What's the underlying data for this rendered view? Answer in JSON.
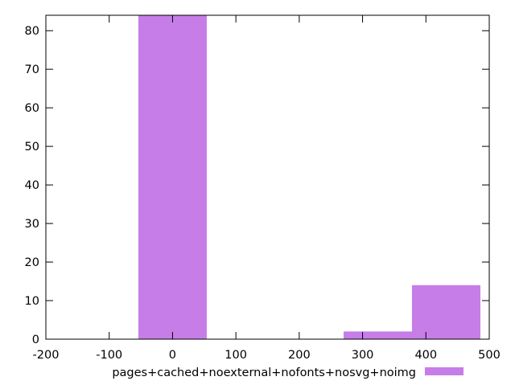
{
  "chart_data": {
    "type": "bar",
    "title": "",
    "xlabel": "",
    "ylabel": "",
    "xlim": [
      -200,
      500
    ],
    "ylim": [
      0,
      84
    ],
    "x_ticks": [
      -200,
      -100,
      0,
      100,
      200,
      300,
      400,
      500
    ],
    "x_tick_labels": [
      "-200",
      "-100",
      "0",
      "100",
      "200",
      "300",
      "400",
      "500"
    ],
    "y_ticks": [
      0,
      10,
      20,
      30,
      40,
      50,
      60,
      70,
      80
    ],
    "y_tick_labels": [
      "0",
      "10",
      "20",
      "30",
      "40",
      "50",
      "60",
      "70",
      "80"
    ],
    "grid": false,
    "legend_position": "bottom",
    "series": [
      {
        "name": "pages+cached+noexternal+nofonts+nosvg+noimg",
        "color": "#c77de8",
        "bins": [
          {
            "x0": -54,
            "x1": 54,
            "value": 84
          },
          {
            "x0": 270,
            "x1": 378,
            "value": 2
          },
          {
            "x0": 378,
            "x1": 486,
            "value": 14
          }
        ]
      }
    ]
  }
}
